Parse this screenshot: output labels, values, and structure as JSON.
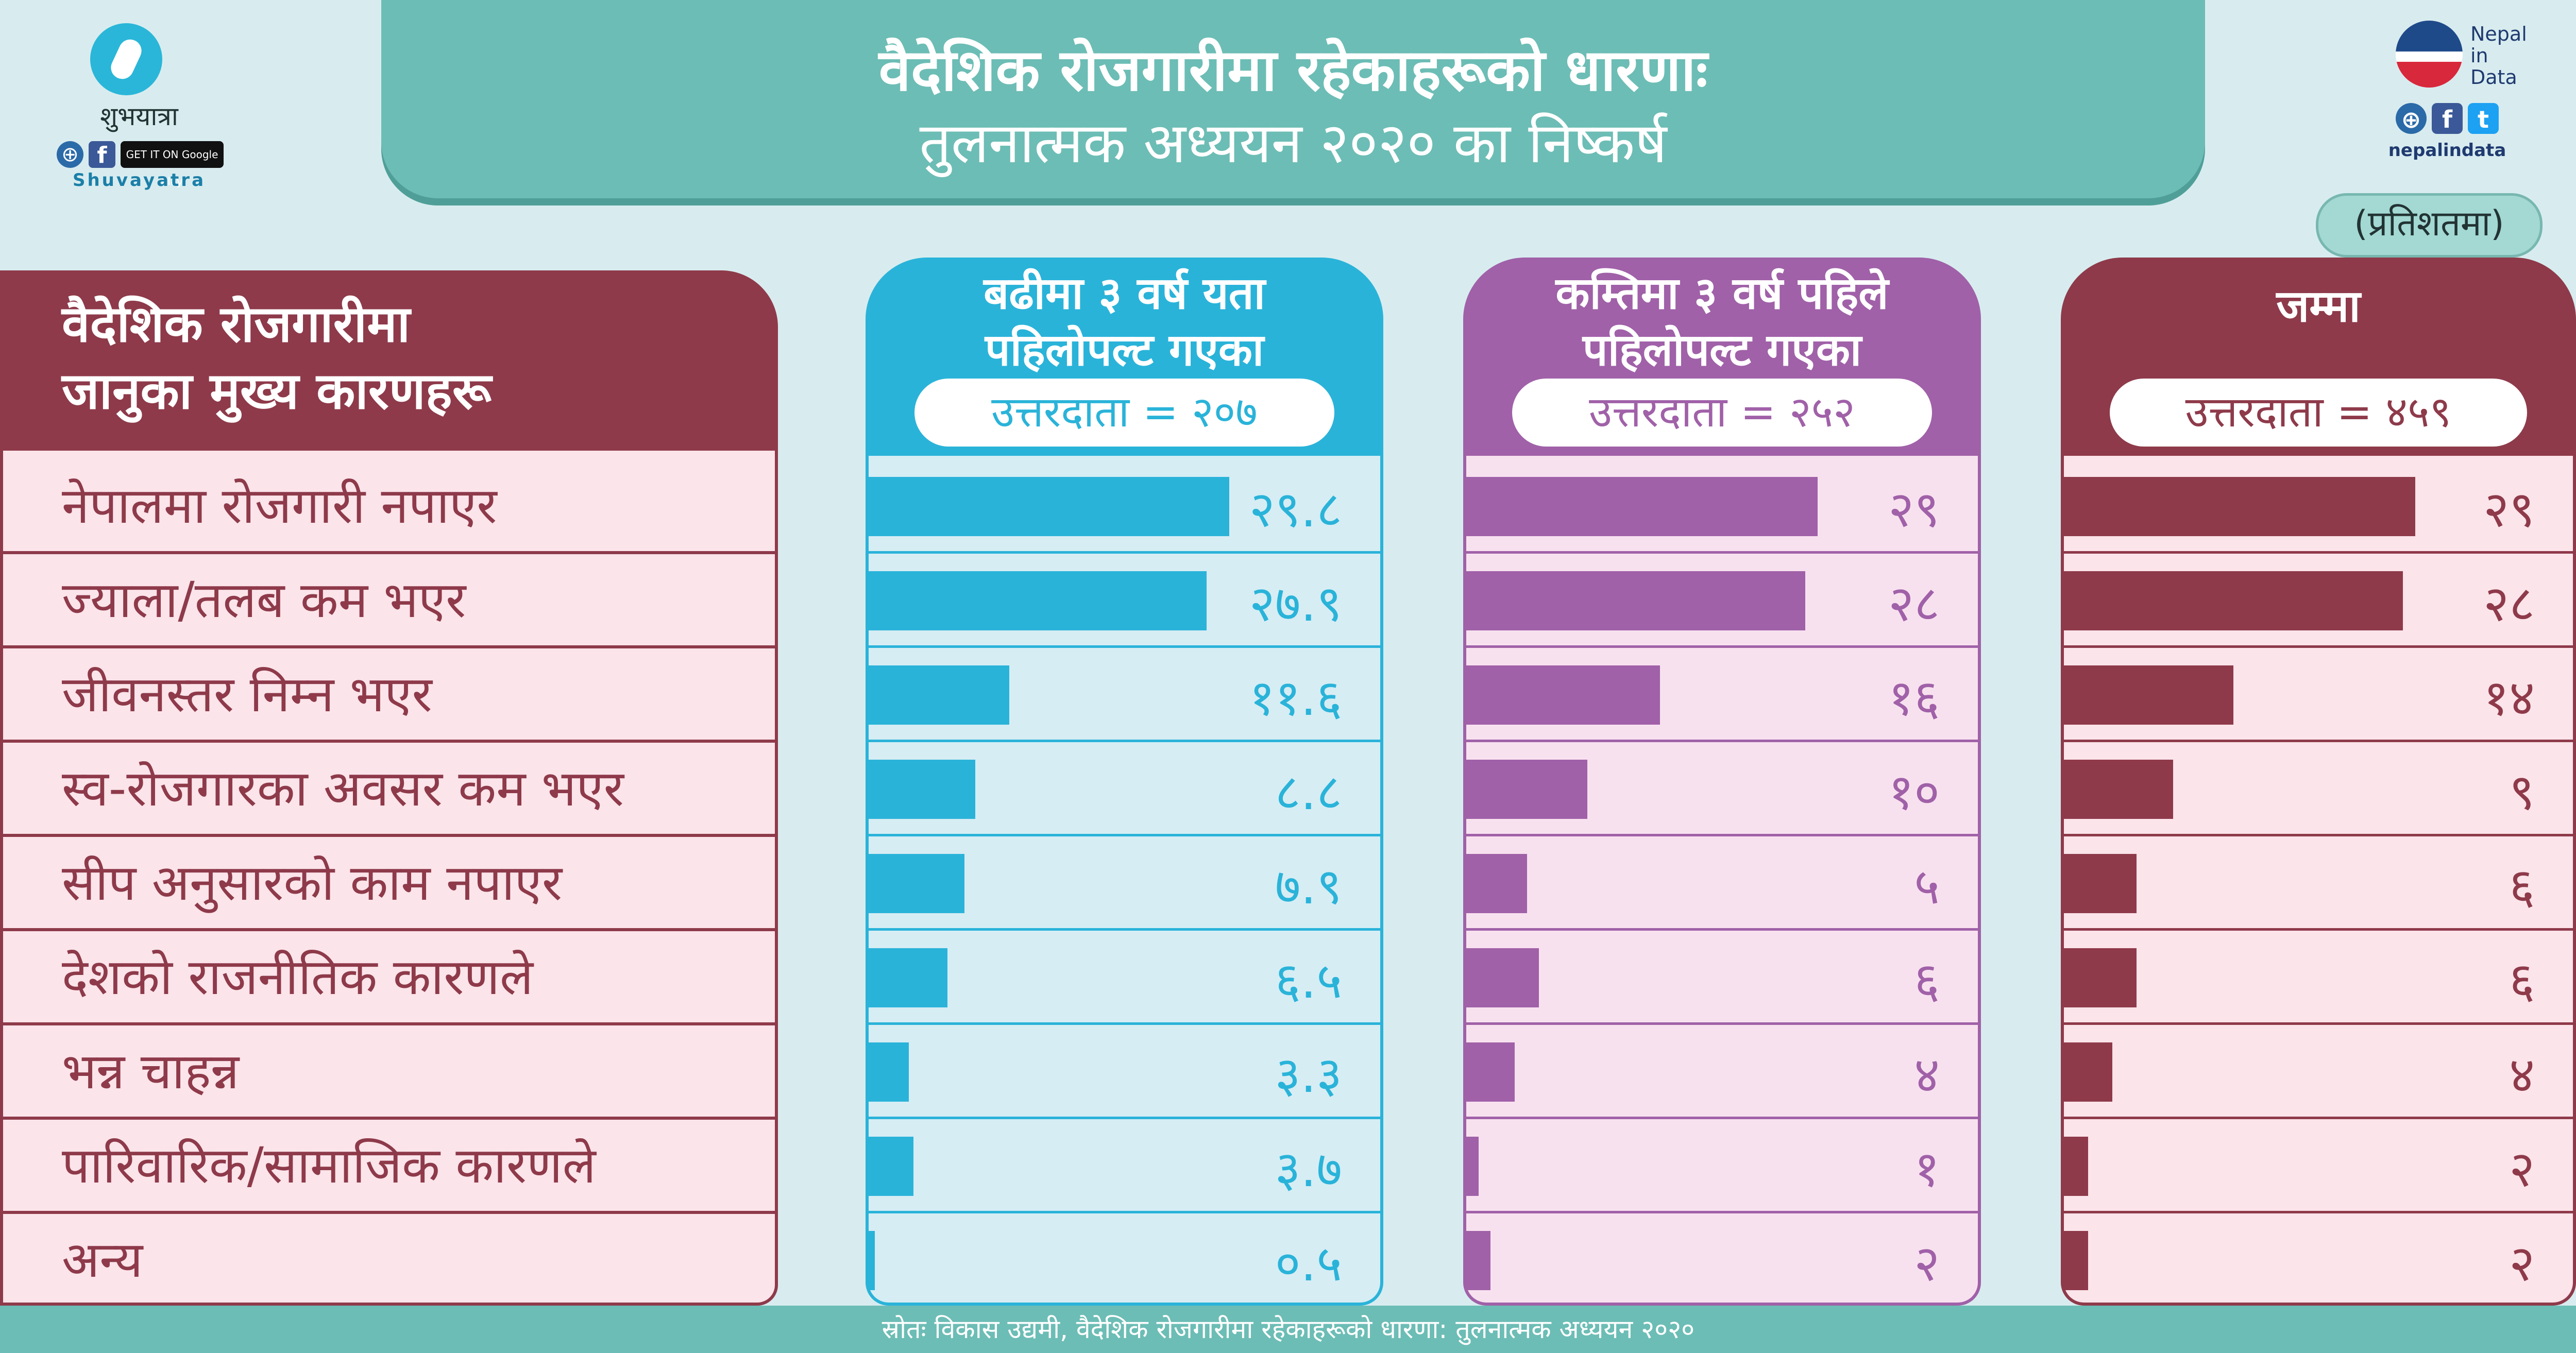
{
  "header": {
    "title_line1": "वैदेशिक रोजगारीमा रहेकाहरूको धारणाः",
    "title_line2": "तुलनात्मक अध्ययन २०२० का निष्कर्ष"
  },
  "logo_left": {
    "name": "शुभयात्रा",
    "sub": "Shuvayatra",
    "store_text": "GET IT ON Google Play",
    "icon": "shuvayatra-logo-icon"
  },
  "logo_right": {
    "line1": "Nepal",
    "line2": "in",
    "line3": "Data",
    "url": "nepalindata",
    "icon": "nepal-in-data-logo-icon"
  },
  "unit_label": "(प्रतिशतमा)",
  "left_panel": {
    "heading_line1": "वैदेशिक रोजगारीमा",
    "heading_line2": "जानुका मुख्य कारणहरू"
  },
  "columns": [
    {
      "head_line1": "बढीमा ३ वर्ष यता",
      "head_line2": "पहिलोपल्ट गएका",
      "respondents": "उत्तरदाता = २०७",
      "color": "#2ab3d9",
      "light": "#d6edf4"
    },
    {
      "head_line1": "कम्तिमा ३ वर्ष पहिले",
      "head_line2": "पहिलोपल्ट गएका",
      "respondents": "उत्तरदाता = २५२",
      "color": "#a061a8",
      "light": "#f8e1ef"
    },
    {
      "head_line1": "जम्मा",
      "head_line2": "",
      "respondents": "उत्तरदाता = ४५९",
      "color": "#8e3a4a",
      "light": "#fbe4ea"
    }
  ],
  "footer": {
    "source": "स्रोतः विकास उद्यमी, वैदेशिक रोजगारीमा रहेकाहरूको धारणा: तुलनात्मक अध्ययन २०२०"
  },
  "chart_data": {
    "type": "bar",
    "title": "वैदेशिक रोजगारीमा रहेकाहरूको धारणाः तुलनात्मक अध्ययन २०२० का निष्कर्ष",
    "categories": [
      "नेपालमा रोजगारी नपाएर",
      "ज्याला/तलब कम भएर",
      "जीवनस्तर निम्न भएर",
      "स्व-रोजगारका अवसर कम भएर",
      "सीप अनुसारको काम नपाएर",
      "देशको राजनीतिक कारणले",
      "भन्न चाहन्न",
      "पारिवारिक/सामाजिक कारणले",
      "अन्य"
    ],
    "series": [
      {
        "name": "बढीमा ३ वर्ष यता पहिलोपल्ट गएका",
        "values": [
          29.8,
          27.9,
          11.6,
          8.8,
          7.9,
          6.5,
          3.3,
          3.7,
          0.5
        ],
        "labels": [
          "२९.८",
          "२७.९",
          "११.६",
          "८.८",
          "७.९",
          "६.५",
          "३.३",
          "३.७",
          "०.५"
        ]
      },
      {
        "name": "कम्तिमा ३ वर्ष पहिले पहिलोपल्ट गएका",
        "values": [
          29,
          28,
          16,
          10,
          5,
          6,
          4,
          1,
          2
        ],
        "labels": [
          "२९",
          "२८",
          "१६",
          "१०",
          "५",
          "६",
          "४",
          "१",
          "२"
        ]
      },
      {
        "name": "जम्मा",
        "values": [
          29,
          28,
          14,
          9,
          6,
          6,
          4,
          2,
          2
        ],
        "labels": [
          "२९",
          "२८",
          "१४",
          "९",
          "६",
          "६",
          "४",
          "२",
          "२"
        ]
      }
    ],
    "xlim": [
      0,
      42
    ],
    "orientation": "horizontal"
  }
}
